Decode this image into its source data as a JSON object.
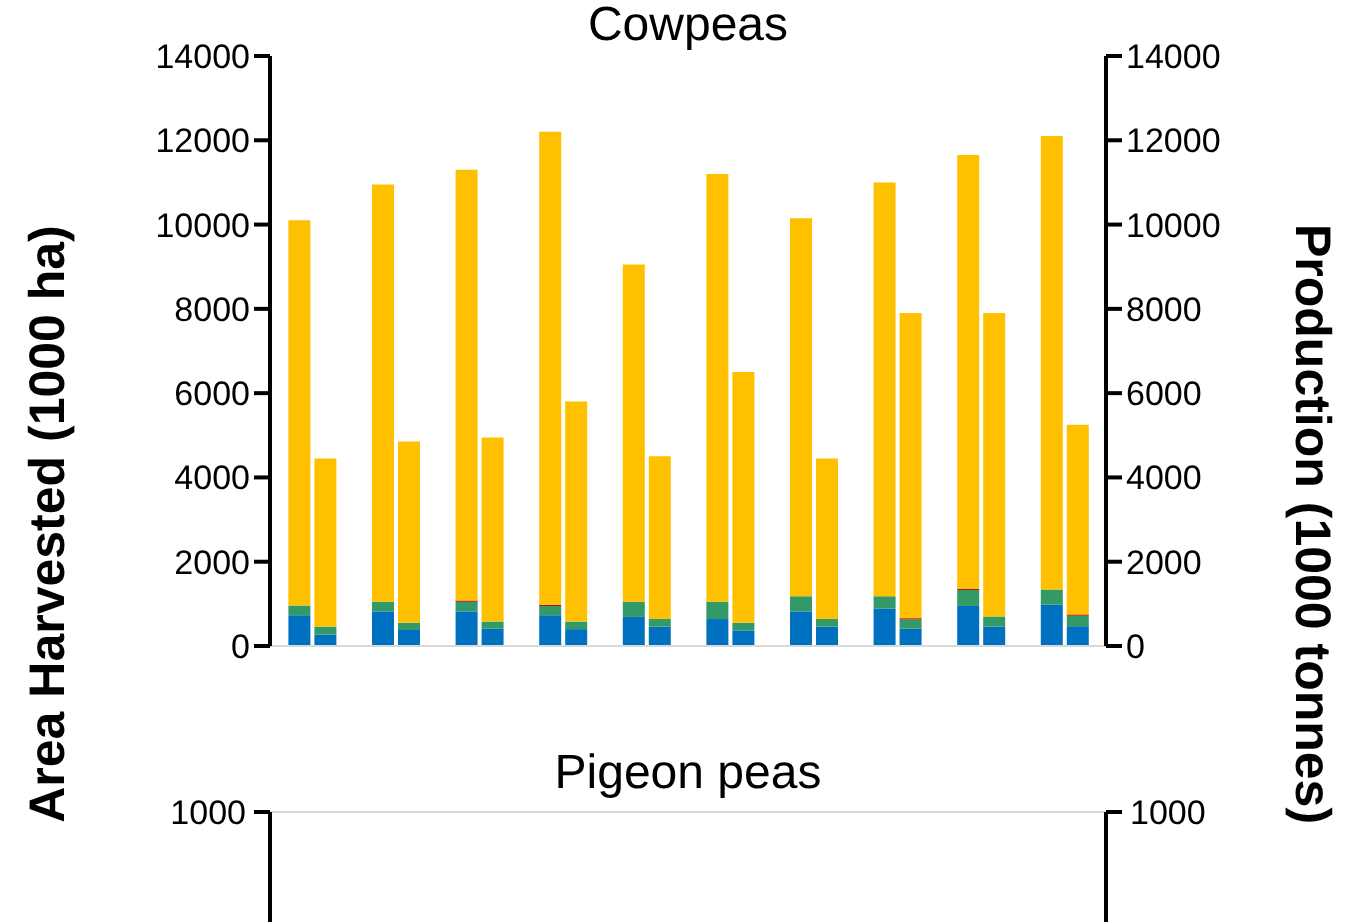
{
  "chart_data": [
    {
      "type": "bar",
      "title": "Cowpeas",
      "ylabel": "Area Harvested (1000 ha)",
      "y2label": "Production (1000 tonnes)",
      "stacked": true,
      "categories": [
        null,
        null,
        null,
        null,
        null,
        null,
        null,
        null,
        null,
        null
      ],
      "ylim": [
        0,
        14000
      ],
      "yticks": [
        0,
        2000,
        4000,
        6000,
        8000,
        10000,
        12000,
        14000
      ],
      "y2lim": [
        0,
        14000
      ],
      "y2ticks": [
        0,
        2000,
        4000,
        6000,
        8000,
        10000,
        12000,
        14000
      ],
      "grid": false,
      "legend": false,
      "series": [
        {
          "color": "#0070c0",
          "values": [
            730,
            820,
            820,
            730,
            690,
            640,
            820,
            890,
            950,
            980
          ]
        },
        {
          "color": "#339966",
          "values": [
            230,
            230,
            230,
            220,
            360,
            410,
            360,
            290,
            380,
            360
          ]
        },
        {
          "color": "#c00000",
          "values": [
            null,
            null,
            30,
            30,
            null,
            null,
            null,
            null,
            30,
            null
          ]
        },
        {
          "color": "#ffc000",
          "values": [
            9140,
            9900,
            10220,
            11220,
            8000,
            10150,
            8970,
            9820,
            10290,
            10760
          ]
        },
        {
          "color": "#0070c0",
          "axis": "y2",
          "values": [
            270,
            380,
            410,
            400,
            460,
            370,
            460,
            410,
            460,
            470
          ]
        },
        {
          "color": "#339966",
          "axis": "y2",
          "values": [
            190,
            170,
            170,
            180,
            180,
            180,
            180,
            220,
            240,
            250
          ]
        },
        {
          "color": "#c00000",
          "axis": "y2",
          "values": [
            null,
            null,
            null,
            null,
            null,
            null,
            null,
            30,
            null,
            30
          ]
        },
        {
          "color": "#ffc000",
          "axis": "y2",
          "values": [
            3990,
            4300,
            4370,
            5220,
            3860,
            5950,
            3810,
            7240,
            7200,
            4500
          ]
        }
      ]
    },
    {
      "type": "other",
      "title": "Pigeon peas",
      "annotations": [
        "1000",
        "1000"
      ]
    }
  ]
}
